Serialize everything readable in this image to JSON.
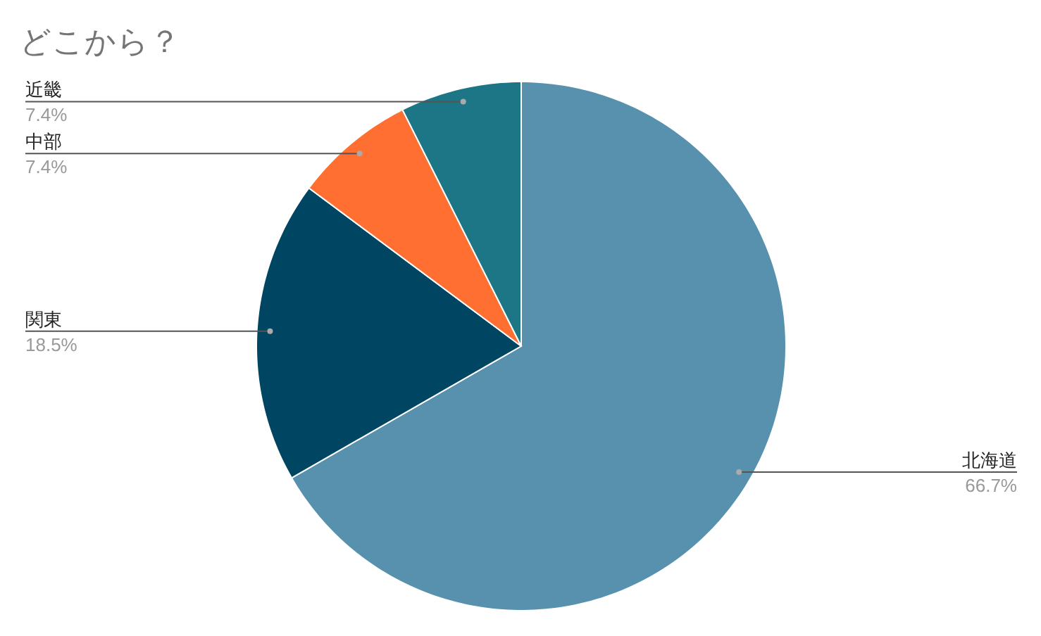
{
  "chart_data": {
    "type": "pie",
    "title": "どこから？",
    "categories": [
      "北海道",
      "関東",
      "中部",
      "近畿"
    ],
    "values": [
      66.7,
      18.5,
      7.4,
      7.4
    ],
    "value_labels": [
      "66.7%",
      "18.5%",
      "7.4%",
      "7.4%"
    ],
    "colors": [
      "#5891ad",
      "#004561",
      "#ff6f31",
      "#1c7685"
    ],
    "legend": false
  }
}
